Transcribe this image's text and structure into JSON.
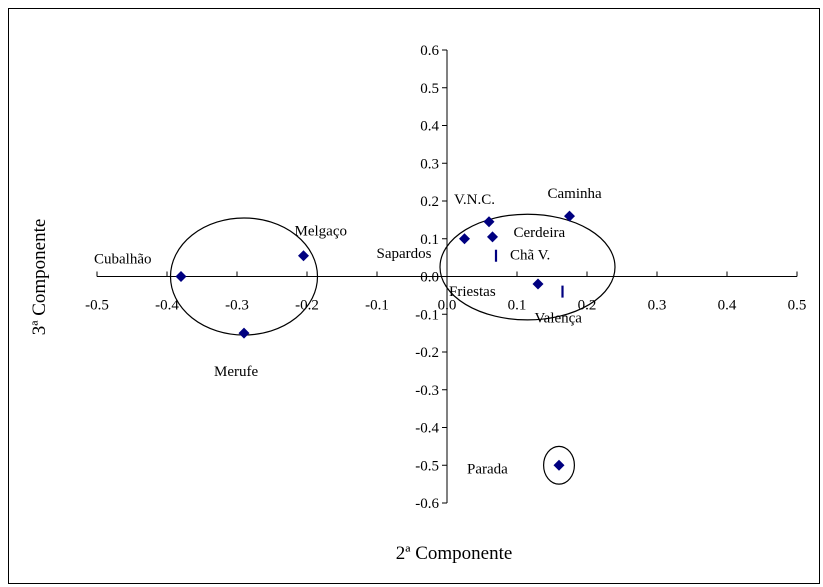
{
  "chart_data": {
    "type": "scatter",
    "title": "",
    "xlabel": "2ª Componente",
    "ylabel": "3ª Componente",
    "xlim": [
      -0.5,
      0.5
    ],
    "ylim": [
      -0.6,
      0.6
    ],
    "x_ticks": [
      "-0.5",
      "-0.4",
      "-0.3",
      "-0.2",
      "-0.1",
      "0.0",
      "0.1",
      "0.2",
      "0.3",
      "0.4",
      "0.5"
    ],
    "y_ticks": [
      "0.6",
      "0.5",
      "0.4",
      "0.3",
      "0.2",
      "0.1",
      "0.0",
      "-0.1",
      "-0.2",
      "-0.3",
      "-0.4",
      "-0.5",
      "-0.6"
    ],
    "marker_color": "#000080",
    "points": [
      {
        "label": "Cubalhão",
        "x": -0.38,
        "y": 0.0,
        "marker": "diamond"
      },
      {
        "label": "Merufe",
        "x": -0.29,
        "y": -0.15,
        "marker": "diamond"
      },
      {
        "label": "Melgaço",
        "x": -0.205,
        "y": 0.055,
        "marker": "diamond"
      },
      {
        "label": "Sapardos",
        "x": 0.025,
        "y": 0.1,
        "marker": "diamond"
      },
      {
        "label": "V.N.C.",
        "x": 0.06,
        "y": 0.145,
        "marker": "diamond"
      },
      {
        "label": "Cerdeira",
        "x": 0.065,
        "y": 0.105,
        "marker": "diamond"
      },
      {
        "label": "Chã V.",
        "x": 0.07,
        "y": 0.055,
        "marker": "dash"
      },
      {
        "label": "Caminha",
        "x": 0.175,
        "y": 0.16,
        "marker": "diamond"
      },
      {
        "label": "Friestas",
        "x": 0.13,
        "y": -0.02,
        "marker": "diamond"
      },
      {
        "label": "Valença",
        "x": 0.165,
        "y": -0.04,
        "marker": "dash"
      },
      {
        "label": "Parada",
        "x": 0.16,
        "y": -0.5,
        "marker": "diamond"
      }
    ],
    "groups": [
      {
        "cx": -0.29,
        "cy": 0.0,
        "rx": 0.105,
        "ry": 0.155
      },
      {
        "cx": 0.115,
        "cy": 0.025,
        "rx": 0.125,
        "ry": 0.14
      },
      {
        "cx": 0.16,
        "cy": -0.5,
        "rx": 0.022,
        "ry": 0.05
      }
    ]
  }
}
